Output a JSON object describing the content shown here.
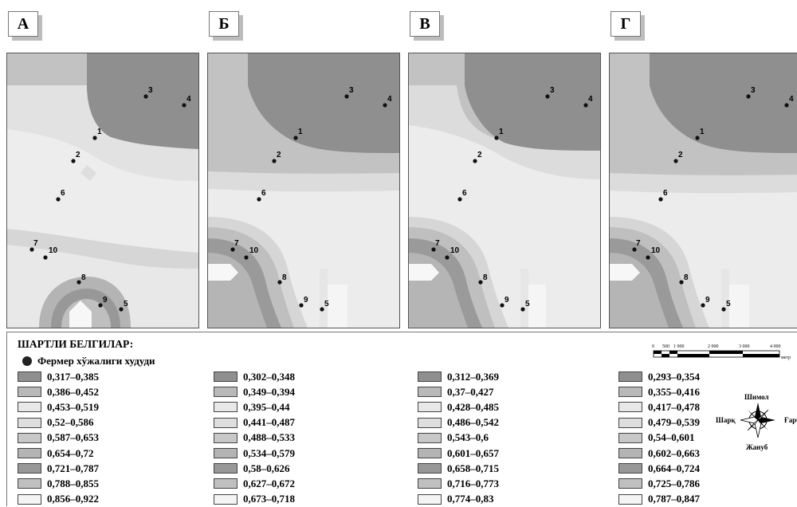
{
  "panels": [
    {
      "label": "А"
    },
    {
      "label": "Б"
    },
    {
      "label": "В"
    },
    {
      "label": "Г"
    }
  ],
  "points": [
    {
      "label": "1"
    },
    {
      "label": "2"
    },
    {
      "label": "3"
    },
    {
      "label": "4"
    },
    {
      "label": "5"
    },
    {
      "label": "6"
    },
    {
      "label": "7"
    },
    {
      "label": "8"
    },
    {
      "label": "9"
    },
    {
      "label": "10"
    }
  ],
  "legend": {
    "title": "ШАРТЛИ БЕЛГИЛАР:",
    "farm_label": "Фермер хўжалиги худуди",
    "colors": [
      "#8f8f8f",
      "#b9b9b9",
      "#e8e8e8",
      "#dedede",
      "#c8c8c8",
      "#b4b4b4",
      "#989898",
      "#bfbfbf",
      "#f4f4f4"
    ],
    "columns": [
      {
        "items": [
          "0,317–0,385",
          "0,386–0,452",
          "0,453–0,519",
          "0,52–0,586",
          "0,587–0,653",
          "0,654–0,72",
          "0,721–0,787",
          "0,788–0,855",
          "0,856–0,922"
        ]
      },
      {
        "items": [
          "0,302–0,348",
          "0,349–0,394",
          "0,395–0,44",
          "0,441–0,487",
          "0,488–0,533",
          "0,534–0,579",
          "0,58–0,626",
          "0,627–0,672",
          "0,673–0,718"
        ]
      },
      {
        "items": [
          "0,312–0,369",
          "0,37–0,427",
          "0,428–0,485",
          "0,486–0,542",
          "0,543–0,6",
          "0,601–0,657",
          "0,658–0,715",
          "0,716–0,773",
          "0,774–0,83"
        ]
      },
      {
        "items": [
          "0,293–0,354",
          "0,355–0,416",
          "0,417–0,478",
          "0,479–0,539",
          "0,54–0,601",
          "0,602–0,663",
          "0,664–0,724",
          "0,725–0,786",
          "0,787–0,847"
        ]
      }
    ]
  },
  "scale": {
    "ticks": [
      "0",
      "500",
      "1 000",
      "2 000",
      "3 000",
      "4 000"
    ],
    "unit": "метр"
  },
  "compass": {
    "north": "Шимол",
    "south": "Жануб",
    "east": "Ғарб",
    "west": "Шарқ"
  }
}
